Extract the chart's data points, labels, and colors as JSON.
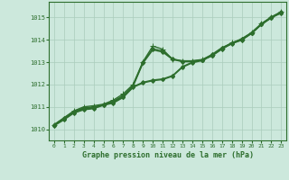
{
  "background_color": "#cce8dc",
  "grid_color": "#aaccbb",
  "line_color": "#2d6e2d",
  "text_color": "#2d6e2d",
  "title": "Graphe pression niveau de la mer (hPa)",
  "xlim": [
    -0.5,
    23.5
  ],
  "ylim": [
    1009.5,
    1015.7
  ],
  "yticks": [
    1010,
    1011,
    1012,
    1013,
    1014,
    1015
  ],
  "xticks": [
    0,
    1,
    2,
    3,
    4,
    5,
    6,
    7,
    8,
    9,
    10,
    11,
    12,
    13,
    14,
    15,
    16,
    17,
    18,
    19,
    20,
    21,
    22,
    23
  ],
  "series": [
    {
      "x": [
        0,
        1,
        2,
        3,
        4,
        5,
        6,
        7,
        8,
        9,
        10,
        11,
        12,
        13,
        14,
        15,
        16,
        17,
        18,
        19,
        20,
        21,
        22,
        23
      ],
      "y": [
        1010.2,
        1010.5,
        1010.8,
        1010.95,
        1011.0,
        1011.1,
        1011.25,
        1011.5,
        1011.95,
        1013.0,
        1013.6,
        1013.5,
        1013.15,
        1013.05,
        1013.05,
        1013.1,
        1013.3,
        1013.6,
        1013.85,
        1014.0,
        1014.3,
        1014.7,
        1015.0,
        1015.25
      ],
      "marker": "D",
      "markersize": 2.0,
      "linewidth": 1.0
    },
    {
      "x": [
        0,
        1,
        2,
        3,
        4,
        5,
        6,
        7,
        8,
        9,
        10,
        11,
        12,
        13,
        14,
        15,
        16,
        17,
        18,
        19,
        20,
        21,
        22,
        23
      ],
      "y": [
        1010.2,
        1010.45,
        1010.75,
        1010.9,
        1010.95,
        1011.1,
        1011.2,
        1011.45,
        1011.9,
        1012.1,
        1012.2,
        1012.25,
        1012.4,
        1012.8,
        1013.0,
        1013.1,
        1013.35,
        1013.65,
        1013.85,
        1014.05,
        1014.32,
        1014.72,
        1015.02,
        1015.22
      ],
      "marker": "D",
      "markersize": 2.0,
      "linewidth": 1.0
    },
    {
      "x": [
        0,
        1,
        2,
        3,
        4,
        5,
        6,
        7,
        8,
        9,
        10,
        11,
        12,
        13,
        14,
        15,
        16,
        17,
        18,
        19,
        20,
        21,
        22,
        23
      ],
      "y": [
        1010.15,
        1010.42,
        1010.72,
        1010.87,
        1010.92,
        1011.07,
        1011.17,
        1011.42,
        1011.87,
        1012.07,
        1012.17,
        1012.22,
        1012.37,
        1012.77,
        1012.97,
        1013.07,
        1013.32,
        1013.62,
        1013.82,
        1014.02,
        1014.29,
        1014.69,
        1014.99,
        1015.19
      ],
      "marker": "D",
      "markersize": 2.0,
      "linewidth": 1.0
    },
    {
      "x": [
        0,
        1,
        2,
        3,
        4,
        5,
        6,
        7,
        8,
        9,
        10,
        11,
        12,
        13,
        14,
        15,
        16,
        17,
        18,
        19,
        20,
        21,
        22,
        23
      ],
      "y": [
        1010.18,
        1010.47,
        1010.77,
        1010.93,
        1010.97,
        1011.08,
        1011.23,
        1011.47,
        1011.92,
        1012.95,
        1013.55,
        1013.45,
        1013.12,
        1013.02,
        1013.02,
        1013.08,
        1013.28,
        1013.58,
        1013.83,
        1013.98,
        1014.28,
        1014.68,
        1014.98,
        1015.23
      ],
      "marker": "D",
      "markersize": 2.0,
      "linewidth": 1.0
    },
    {
      "x": [
        0,
        2,
        3,
        4,
        5,
        6,
        7,
        8,
        9,
        10,
        11,
        12,
        13,
        14,
        15,
        16,
        17,
        18,
        19,
        20,
        21,
        22,
        23
      ],
      "y": [
        1010.2,
        1010.82,
        1011.0,
        1011.05,
        1011.12,
        1011.3,
        1011.58,
        1012.0,
        1013.02,
        1013.72,
        1013.58,
        1013.12,
        1013.06,
        1013.06,
        1013.12,
        1013.32,
        1013.62,
        1013.87,
        1014.02,
        1014.32,
        1014.72,
        1015.02,
        1015.26
      ],
      "marker": "+",
      "markersize": 4,
      "linewidth": 1.0
    }
  ]
}
